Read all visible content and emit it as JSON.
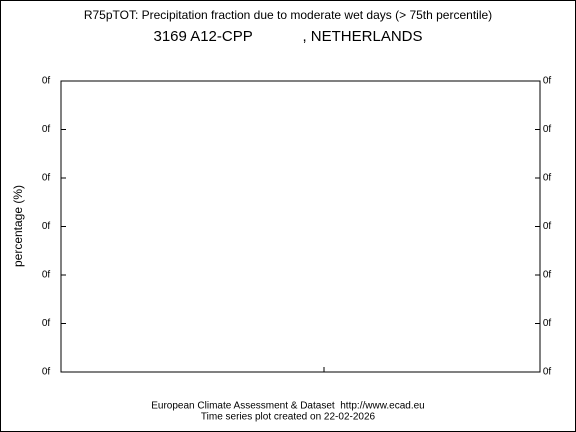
{
  "chart_data": {
    "type": "line",
    "title": "R75pTOT: Precipitation fraction due to moderate wet days (> 75th percentile)",
    "subtitle": "3169 A12-CPP            , NETHERLANDS",
    "y_label": "percentage (%)",
    "ylim": [
      0,
      6
    ],
    "yticks": [
      {
        "value": 0,
        "label": "0f"
      },
      {
        "value": 1,
        "label": "0f"
      },
      {
        "value": 2,
        "label": "0f"
      },
      {
        "value": 3,
        "label": "0f"
      },
      {
        "value": 4,
        "label": "0f"
      },
      {
        "value": 5,
        "label": "0f"
      },
      {
        "value": 6,
        "label": "0f"
      }
    ],
    "series": [],
    "footer": [
      "European Climate Assessment & Dataset  http://www.ecad.eu",
      "Time series plot created on 22-02-2026"
    ]
  }
}
